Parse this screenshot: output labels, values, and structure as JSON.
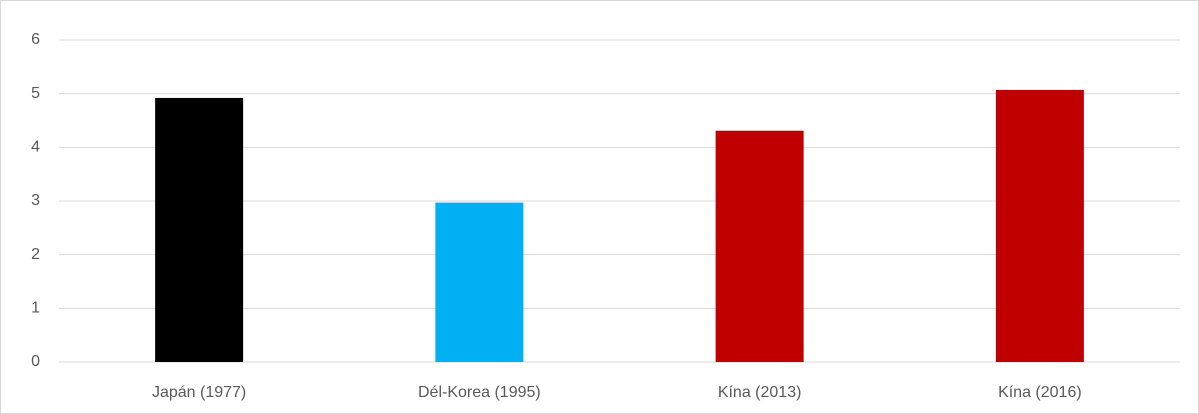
{
  "chart_data": {
    "type": "bar",
    "categories": [
      "Japán (1977)",
      "Dél-Korea (1995)",
      "Kína (2013)",
      "Kína (2016)"
    ],
    "values": [
      4.92,
      2.97,
      4.31,
      5.07
    ],
    "colors": [
      "#000000",
      "#00b0f0",
      "#c00000",
      "#c00000"
    ],
    "ylim": [
      0,
      6
    ],
    "yticks": [
      0,
      1,
      2,
      3,
      4,
      5,
      6
    ],
    "grid": true
  }
}
